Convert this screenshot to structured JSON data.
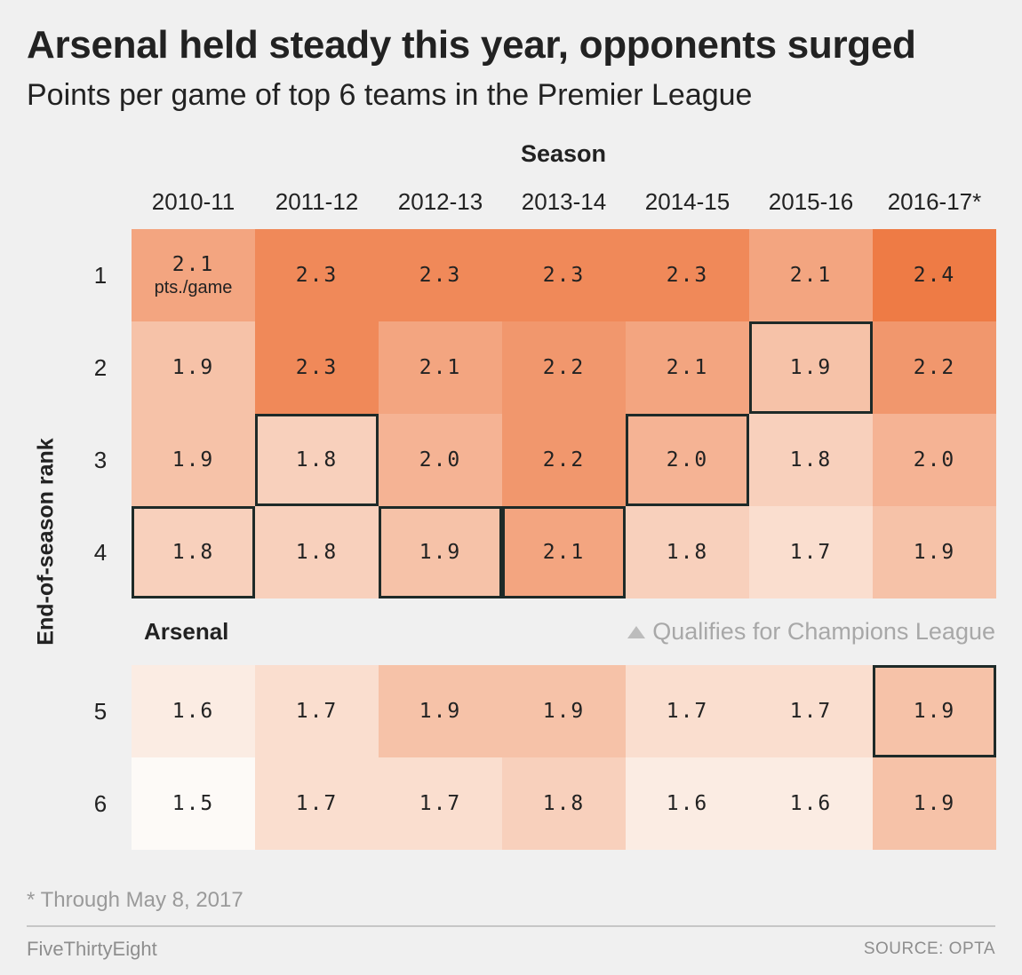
{
  "title": "Arsenal held steady this year, opponents surged",
  "subtitle": "Points per game of top 6 teams in the Premier League",
  "legend": {
    "icon": "triangle-icon",
    "text": "Qualifies for Champions League"
  },
  "arsenal_label": "Arsenal",
  "footnote": "* Through May 8, 2017",
  "brand": "FiveThirtyEight",
  "source": "SOURCE: OPTA",
  "chart_data": {
    "type": "heatmap",
    "xlabel": "Season",
    "ylabel": "End-of-season rank",
    "columns": [
      "2010-11",
      "2011-12",
      "2012-13",
      "2013-14",
      "2014-15",
      "2015-16",
      "2016-17*"
    ],
    "rows": [
      "1",
      "2",
      "3",
      "4",
      "5",
      "6"
    ],
    "values": [
      [
        2.1,
        2.3,
        2.3,
        2.3,
        2.3,
        2.1,
        2.4
      ],
      [
        1.9,
        2.3,
        2.1,
        2.2,
        2.1,
        1.9,
        2.2
      ],
      [
        1.9,
        1.8,
        2.0,
        2.2,
        2.0,
        1.8,
        2.0
      ],
      [
        1.8,
        1.8,
        1.9,
        2.1,
        1.8,
        1.7,
        1.9
      ],
      [
        1.6,
        1.7,
        1.9,
        1.9,
        1.7,
        1.7,
        1.9
      ],
      [
        1.5,
        1.7,
        1.7,
        1.8,
        1.6,
        1.6,
        1.9
      ]
    ],
    "value_labels": [
      [
        "2.1",
        "2.3",
        "2.3",
        "2.3",
        "2.3",
        "2.1",
        "2.4"
      ],
      [
        "1.9",
        "2.3",
        "2.1",
        "2.2",
        "2.1",
        "1.9",
        "2.2"
      ],
      [
        "1.9",
        "1.8",
        "2.0",
        "2.2",
        "2.0",
        "1.8",
        "2.0"
      ],
      [
        "1.8",
        "1.8",
        "1.9",
        "2.1",
        "1.8",
        "1.7",
        "1.9"
      ],
      [
        "1.6",
        "1.7",
        "1.9",
        "1.9",
        "1.7",
        "1.7",
        "1.9"
      ],
      [
        "1.5",
        "1.7",
        "1.7",
        "1.8",
        "1.6",
        "1.6",
        "1.9"
      ]
    ],
    "first_cell_unit": "pts./game",
    "arsenal_rank_by_season": [
      4,
      3,
      4,
      4,
      3,
      2,
      5
    ],
    "color_low": "#fdfaf7",
    "color_high": "#ee7b45",
    "highlight_border_color": "#1e2a28"
  }
}
